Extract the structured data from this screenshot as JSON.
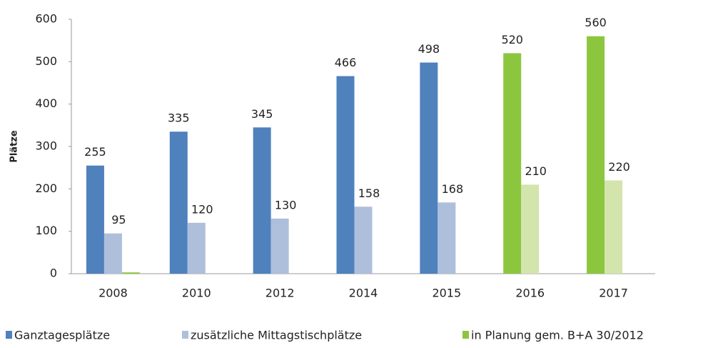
{
  "chart_data": {
    "type": "bar",
    "y_label": "Plätze",
    "categories": [
      "2008",
      "2010",
      "2012",
      "2014",
      "2015",
      "2016",
      "2017"
    ],
    "series": [
      {
        "name": "Ganztagesplätze",
        "color": "#4f81bd",
        "colors": [
          "#4f81bd",
          "#4f81bd",
          "#4f81bd",
          "#4f81bd",
          "#4f81bd",
          "#8cc63e",
          "#8cc63e"
        ],
        "data_labels": true,
        "values": [
          255,
          335,
          345,
          466,
          498,
          520,
          560
        ]
      },
      {
        "name": "zusätzliche Mittagstischplätze",
        "color": "#aebfdc",
        "colors": [
          "#aebfdc",
          "#aebfdc",
          "#aebfdc",
          "#aebfdc",
          "#aebfdc",
          "#d3e4ad",
          "#d3e4ad"
        ],
        "data_labels": true,
        "values": [
          95,
          120,
          130,
          158,
          168,
          210,
          220
        ]
      },
      {
        "name": "in Planung gem. B+A 30/2012",
        "color": "#8cc63e",
        "colors": [
          "#8cc63e",
          "#8cc63e",
          "#8cc63e",
          "#8cc63e",
          "#8cc63e",
          "#8cc63e",
          "#8cc63e"
        ],
        "data_labels": false,
        "values": [
          3,
          null,
          null,
          null,
          null,
          null,
          null
        ]
      }
    ],
    "ylim": [
      0,
      600
    ],
    "yticks": [
      0,
      100,
      200,
      300,
      400,
      500,
      600
    ],
    "grid": false,
    "legend": "bottom"
  }
}
